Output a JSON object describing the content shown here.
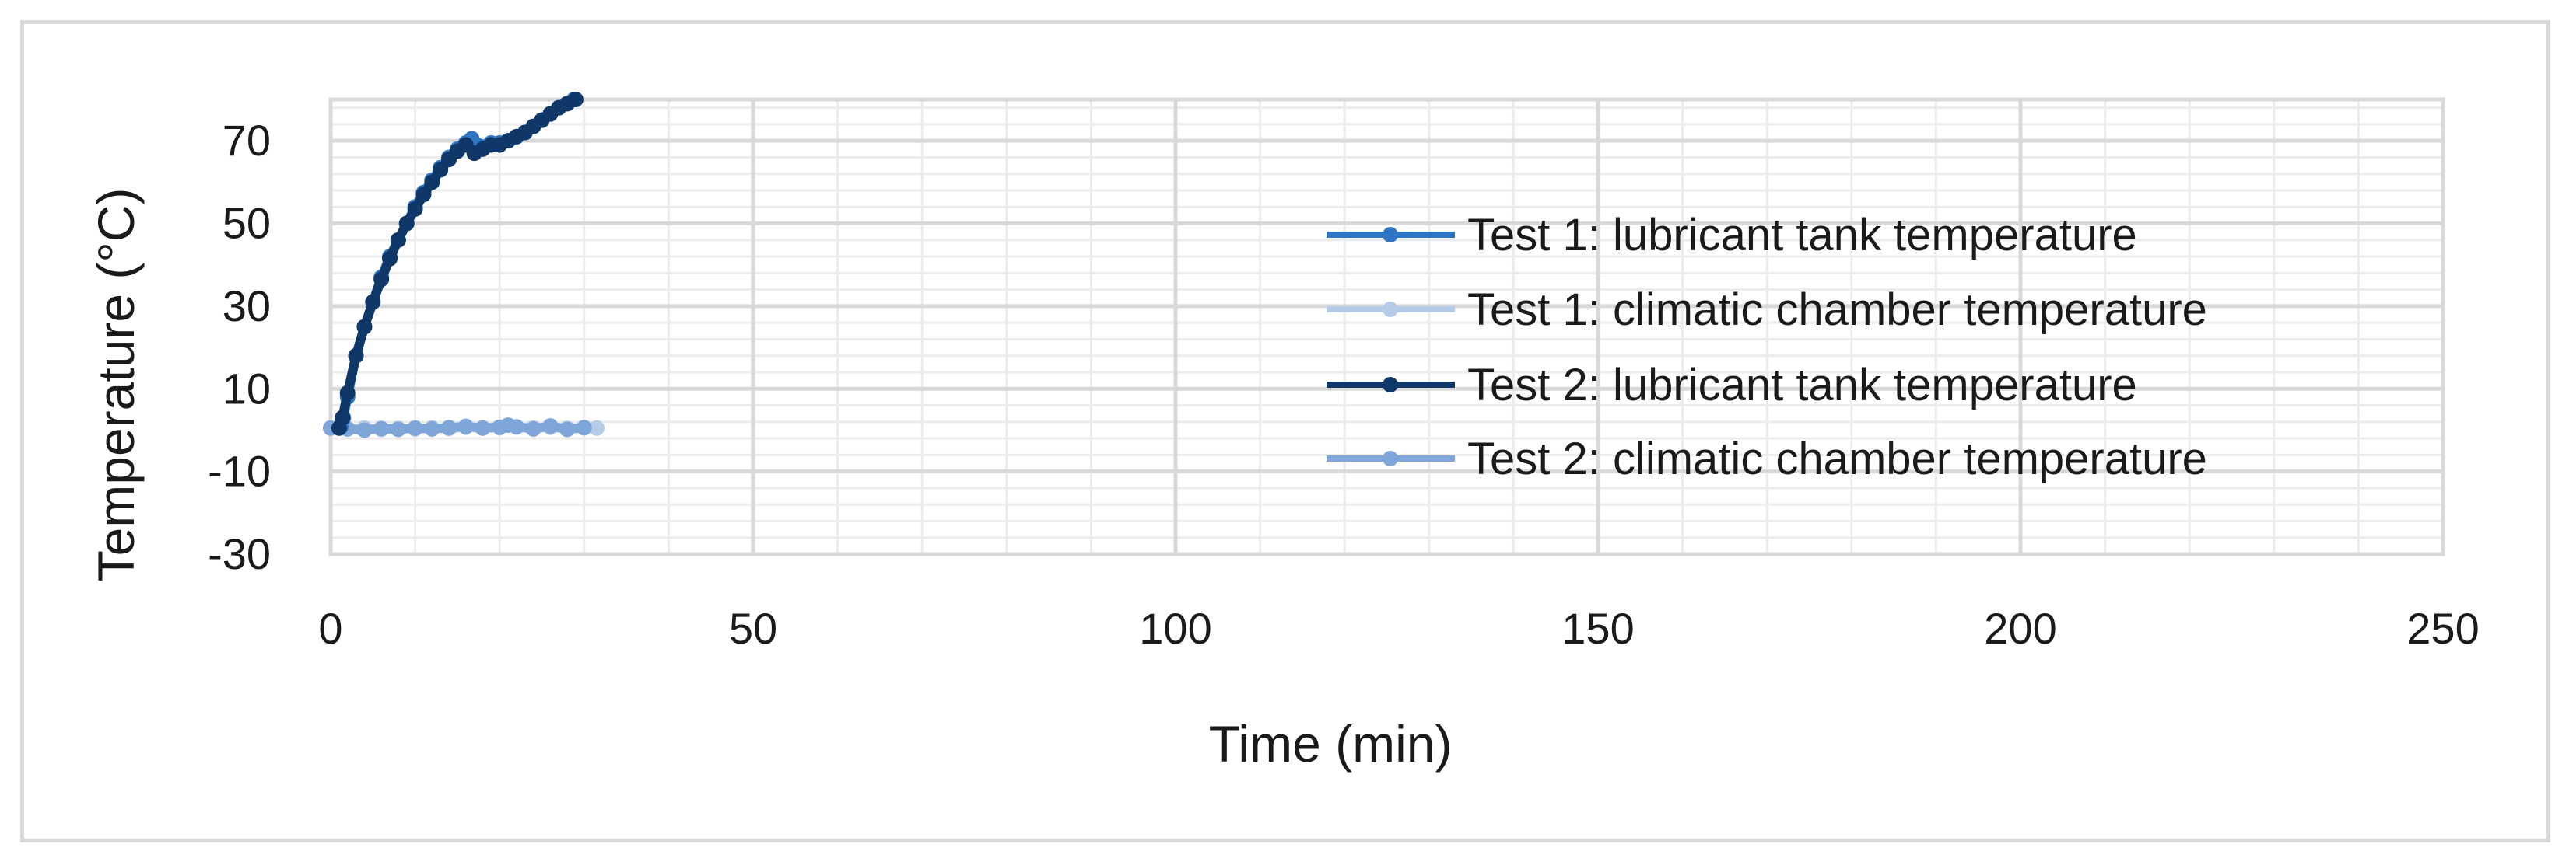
{
  "chart_data": {
    "type": "scatter",
    "title": "",
    "xlabel": "Time (min)",
    "ylabel": "Temperature (°C)",
    "xlim": [
      0,
      250
    ],
    "ylim": [
      -30,
      80
    ],
    "x_ticks": [
      0,
      50,
      100,
      150,
      200,
      250
    ],
    "x_tick_labels": [
      "0",
      "50",
      "100",
      "150",
      "200",
      "250"
    ],
    "y_ticks": [
      -30,
      -10,
      10,
      30,
      50,
      70
    ],
    "y_tick_labels": [
      "-30",
      "-10",
      "10",
      "30",
      "50",
      "70"
    ],
    "grid": true,
    "legend_position": "right",
    "series": [
      {
        "name": "Test 1: lubricant tank temperature",
        "color": "#2e75c4",
        "x": [
          1.2,
          1.5,
          2,
          3,
          4,
          5,
          6,
          7,
          8,
          9,
          10,
          11,
          12,
          13,
          14,
          15,
          16,
          16.7,
          17.3,
          18,
          19,
          20,
          21,
          22,
          23,
          24,
          25,
          26,
          27,
          28,
          28.8
        ],
        "y": [
          0.8,
          3,
          8,
          18,
          25,
          31,
          37,
          42,
          46,
          50,
          54,
          57.5,
          60.5,
          63.5,
          66,
          68,
          69.5,
          70.5,
          69,
          68.5,
          69.5,
          69.5,
          70,
          71,
          72,
          73.5,
          75,
          76.5,
          78,
          79,
          80
        ]
      },
      {
        "name": "Test 1: climatic chamber temperature",
        "color": "#b4cce8",
        "x": [
          0,
          2,
          4,
          6,
          8,
          10,
          12,
          14,
          16,
          18,
          20,
          22,
          24,
          26,
          28,
          30,
          31.5
        ],
        "y": [
          0.5,
          0.3,
          0.5,
          0.2,
          0.4,
          0.3,
          0.5,
          0.4,
          0.7,
          0.5,
          0.6,
          0.8,
          0.5,
          0.7,
          0.4,
          0.6,
          0.5
        ]
      },
      {
        "name": "Test 2: lubricant tank temperature",
        "color": "#0f3868",
        "x": [
          1,
          1.4,
          2,
          3,
          4,
          5,
          6,
          7,
          8,
          9,
          10,
          11,
          12,
          13,
          14,
          15,
          16,
          17,
          18,
          19,
          20,
          21,
          22,
          23,
          24,
          25,
          26,
          27,
          28,
          29
        ],
        "y": [
          0.5,
          3,
          9,
          18,
          25,
          31,
          36.5,
          41.5,
          46,
          50,
          53.5,
          57,
          60,
          63,
          65.5,
          67.5,
          69,
          67,
          68,
          69,
          69,
          70,
          71,
          72,
          73.5,
          75,
          76.5,
          78,
          79,
          80
        ]
      },
      {
        "name": "Test 2: climatic chamber temperature",
        "color": "#7fa6d8",
        "x": [
          0,
          2,
          4,
          6,
          8,
          10,
          12,
          14,
          16,
          18,
          20,
          21,
          22,
          24,
          26,
          28,
          30
        ],
        "y": [
          0.5,
          0.3,
          0,
          0.4,
          0.2,
          0.5,
          0.3,
          0.6,
          0.9,
          0.5,
          0.7,
          1.2,
          0.8,
          0.3,
          1,
          0.2,
          0.6
        ]
      }
    ]
  }
}
